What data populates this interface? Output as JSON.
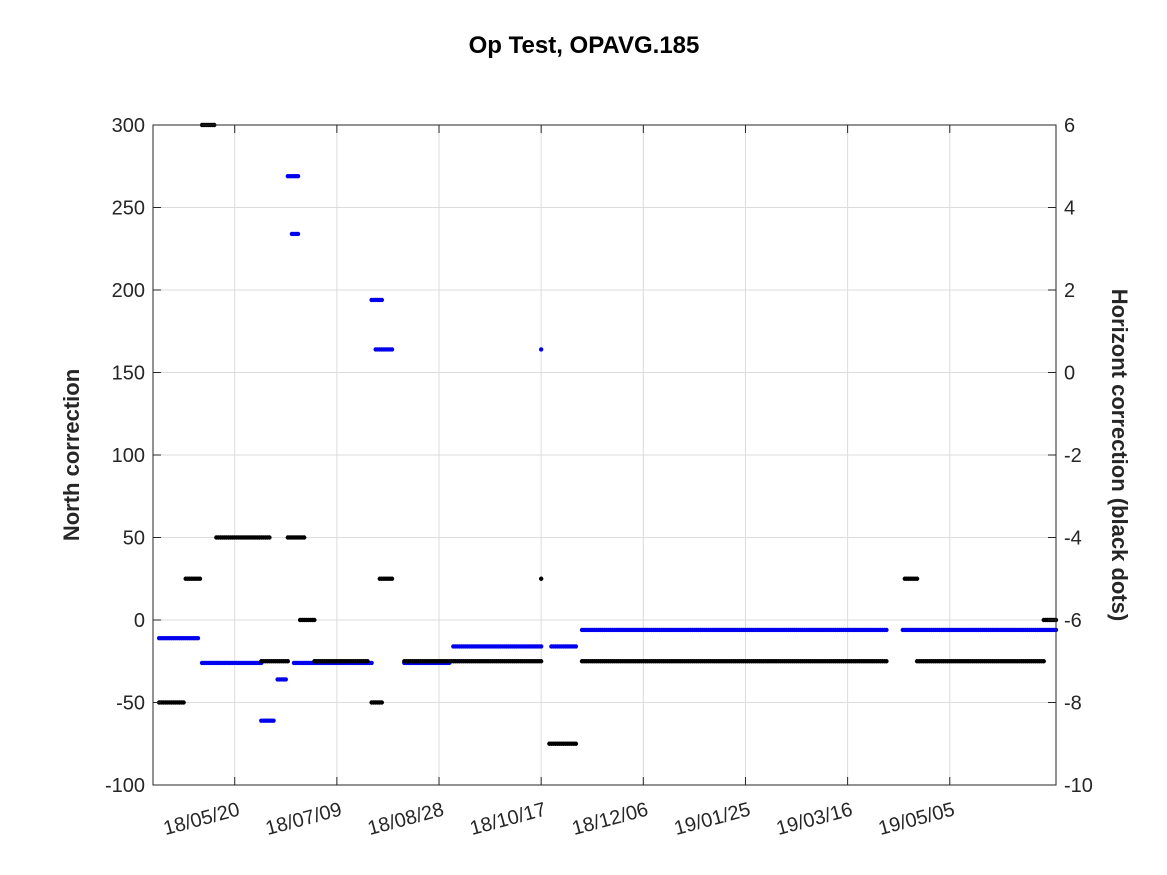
{
  "chart_data": {
    "type": "scatter",
    "title": "Op Test, OPAVG.185",
    "xlabel": "",
    "ylabel": "North correction",
    "ylabel_right": "Horizont correction (black dots)",
    "x_axis": {
      "type": "date",
      "range": [
        "2018-04-10",
        "2019-06-26"
      ],
      "tick_values": [
        "2018-05-20",
        "2018-07-09",
        "2018-08-28",
        "2018-10-17",
        "2018-12-06",
        "2019-01-25",
        "2019-03-16",
        "2019-05-05"
      ],
      "tick_labels": [
        "18/05/20",
        "18/07/09",
        "18/08/28",
        "18/10/17",
        "18/12/06",
        "19/01/25",
        "19/03/16",
        "19/05/05"
      ]
    },
    "y_left": {
      "range": [
        -100,
        300
      ],
      "ticks": [
        -100,
        -50,
        0,
        50,
        100,
        150,
        200,
        250,
        300
      ],
      "tick_labels": [
        "-100",
        "-50",
        "0",
        "50",
        "100",
        "150",
        "200",
        "250",
        "300"
      ]
    },
    "y_right": {
      "range": [
        -10,
        6
      ],
      "ticks": [
        -10,
        -8,
        -6,
        -4,
        -2,
        0,
        2,
        4,
        6
      ],
      "tick_labels": [
        "-10",
        "-8",
        "-6",
        "-4",
        "-2",
        "0",
        "2",
        "4",
        "6"
      ]
    },
    "grid": true,
    "series": [
      {
        "axis": "left",
        "color": "#0000ee",
        "segments": [
          {
            "start": "2018-04-13",
            "end": "2018-05-02",
            "value": -11
          },
          {
            "start": "2018-05-04",
            "end": "2018-06-02",
            "value": -26
          },
          {
            "start": "2018-06-02",
            "end": "2018-06-08",
            "value": -61
          },
          {
            "start": "2018-06-10",
            "end": "2018-06-14",
            "value": -36
          },
          {
            "start": "2018-06-15",
            "end": "2018-06-20",
            "value": 269
          },
          {
            "start": "2018-06-17",
            "end": "2018-06-20",
            "value": 234
          },
          {
            "start": "2018-06-18",
            "end": "2018-07-26",
            "value": -26
          },
          {
            "start": "2018-07-26",
            "end": "2018-07-31",
            "value": 194
          },
          {
            "start": "2018-07-28",
            "end": "2018-08-05",
            "value": 164
          },
          {
            "start": "2018-08-11",
            "end": "2018-09-02",
            "value": -26
          },
          {
            "start": "2018-09-04",
            "end": "2018-10-17",
            "value": -16
          },
          {
            "start": "2018-10-17",
            "end": "2018-10-17",
            "value": 164
          },
          {
            "start": "2018-10-22",
            "end": "2018-11-03",
            "value": -16
          },
          {
            "start": "2018-11-06",
            "end": "2019-04-04",
            "value": -6
          },
          {
            "start": "2019-04-12",
            "end": "2019-06-26",
            "value": -6
          }
        ]
      },
      {
        "axis": "right",
        "color": "#000000",
        "segments": [
          {
            "start": "2018-04-13",
            "end": "2018-04-25",
            "value": -8
          },
          {
            "start": "2018-04-26",
            "end": "2018-05-03",
            "value": -5
          },
          {
            "start": "2018-05-04",
            "end": "2018-05-10",
            "value": 6
          },
          {
            "start": "2018-05-11",
            "end": "2018-06-06",
            "value": -4
          },
          {
            "start": "2018-06-02",
            "end": "2018-06-15",
            "value": -7
          },
          {
            "start": "2018-06-15",
            "end": "2018-06-23",
            "value": -4
          },
          {
            "start": "2018-06-21",
            "end": "2018-06-28",
            "value": -6
          },
          {
            "start": "2018-06-28",
            "end": "2018-07-24",
            "value": -7
          },
          {
            "start": "2018-07-26",
            "end": "2018-07-31",
            "value": -8
          },
          {
            "start": "2018-07-30",
            "end": "2018-08-05",
            "value": -5
          },
          {
            "start": "2018-08-11",
            "end": "2018-10-17",
            "value": -7
          },
          {
            "start": "2018-10-17",
            "end": "2018-10-17",
            "value": -5
          },
          {
            "start": "2018-10-21",
            "end": "2018-11-03",
            "value": -9
          },
          {
            "start": "2018-11-06",
            "end": "2019-04-04",
            "value": -7
          },
          {
            "start": "2019-04-13",
            "end": "2019-04-19",
            "value": -5
          },
          {
            "start": "2019-04-19",
            "end": "2019-06-20",
            "value": -7
          },
          {
            "start": "2019-06-20",
            "end": "2019-06-26",
            "value": -6
          }
        ]
      }
    ]
  }
}
